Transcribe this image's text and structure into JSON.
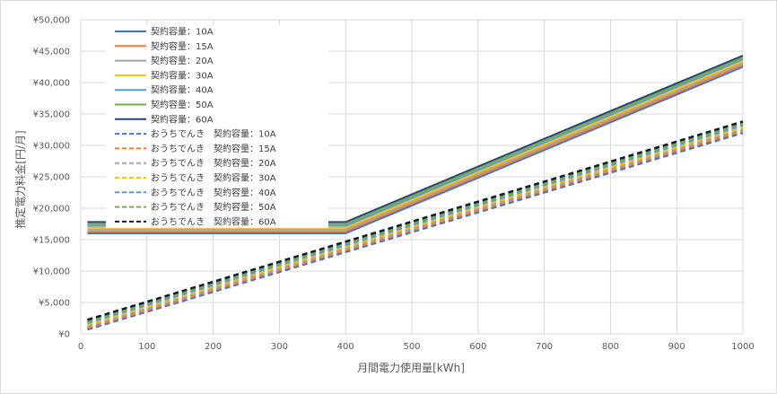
{
  "chart_data": {
    "type": "line",
    "title": "",
    "xlabel": "月間電力使用量[kWh]",
    "ylabel": "推定電力料金[円/月]",
    "xlim": [
      0,
      1000
    ],
    "ylim": [
      0,
      50000
    ],
    "xticks": [
      0,
      100,
      200,
      300,
      400,
      500,
      600,
      700,
      800,
      900,
      1000
    ],
    "yticks": [
      0,
      5000,
      10000,
      15000,
      20000,
      25000,
      30000,
      35000,
      40000,
      45000,
      50000
    ],
    "ytick_labels": [
      "¥0",
      "¥5,000",
      "¥10,000",
      "¥15,000",
      "¥20,000",
      "¥25,000",
      "¥30,000",
      "¥35,000",
      "¥40,000",
      "¥45,000",
      "¥50,000"
    ],
    "grid": true,
    "legend_position": "top-left",
    "series": [
      {
        "name": "契約容量：10A",
        "color": "#4472c4",
        "dash": false,
        "x": [
          10,
          390,
          400,
          1000
        ],
        "y": [
          16000,
          16000,
          16000,
          42500
        ]
      },
      {
        "name": "契約容量：15A",
        "color": "#ed7d31",
        "dash": false,
        "x": [
          10,
          390,
          400,
          1000
        ],
        "y": [
          16300,
          16300,
          16300,
          42800
        ]
      },
      {
        "name": "契約容量：20A",
        "color": "#a5a5a5",
        "dash": false,
        "x": [
          10,
          390,
          400,
          1000
        ],
        "y": [
          16600,
          16600,
          16600,
          43100
        ]
      },
      {
        "name": "契約容量：30A",
        "color": "#ffc000",
        "dash": false,
        "x": [
          10,
          390,
          400,
          1000
        ],
        "y": [
          16900,
          16900,
          16900,
          43400
        ]
      },
      {
        "name": "契約容量：40A",
        "color": "#5b9bd5",
        "dash": false,
        "x": [
          10,
          390,
          400,
          1000
        ],
        "y": [
          17200,
          17200,
          17200,
          43700
        ]
      },
      {
        "name": "契約容量：50A",
        "color": "#70ad47",
        "dash": false,
        "x": [
          10,
          390,
          400,
          1000
        ],
        "y": [
          17500,
          17500,
          17500,
          44000
        ]
      },
      {
        "name": "契約容量：60A",
        "color": "#264478",
        "dash": false,
        "x": [
          10,
          390,
          400,
          1000
        ],
        "y": [
          17800,
          17800,
          17800,
          44300
        ]
      },
      {
        "name": "おうちでんき　契約容量：10A",
        "color": "#4472c4",
        "dash": true,
        "x": [
          10,
          1000
        ],
        "y": [
          700,
          32000
        ]
      },
      {
        "name": "おうちでんき　契約容量：15A",
        "color": "#ed7d31",
        "dash": true,
        "x": [
          10,
          1000
        ],
        "y": [
          950,
          32300
        ]
      },
      {
        "name": "おうちでんき　契約容量：20A",
        "color": "#a5a5a5",
        "dash": true,
        "x": [
          10,
          1000
        ],
        "y": [
          1200,
          32600
        ]
      },
      {
        "name": "おうちでんき　契約容量：30A",
        "color": "#ffc000",
        "dash": true,
        "x": [
          10,
          1000
        ],
        "y": [
          1500,
          32900
        ]
      },
      {
        "name": "おうちでんき　契約容量：40A",
        "color": "#5b9bd5",
        "dash": true,
        "x": [
          10,
          1000
        ],
        "y": [
          1750,
          33200
        ]
      },
      {
        "name": "おうちでんき　契約容量：50A",
        "color": "#70ad47",
        "dash": true,
        "x": [
          10,
          1000
        ],
        "y": [
          2000,
          33500
        ]
      },
      {
        "name": "おうちでんき　契約容量：60A",
        "color": "#0e1a33",
        "dash": true,
        "x": [
          10,
          1000
        ],
        "y": [
          2250,
          33800
        ]
      }
    ]
  }
}
